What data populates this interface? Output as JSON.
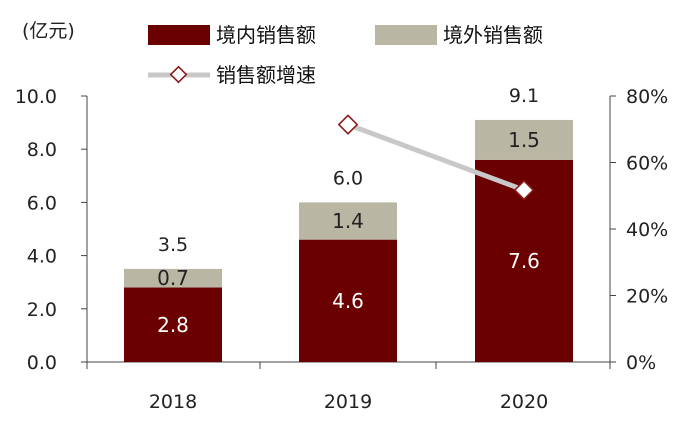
{
  "chart_data": {
    "type": "bar",
    "stacked": true,
    "unit_left": "(亿元)",
    "categories": [
      "2018",
      "2019",
      "2020"
    ],
    "series": [
      {
        "name": "境内销售额",
        "values": [
          2.8,
          4.6,
          7.6
        ],
        "color": "#6b0000",
        "label_color": "#ffffff"
      },
      {
        "name": "境外销售额",
        "values": [
          0.7,
          1.4,
          1.5
        ],
        "color": "#b9b7a4",
        "label_color": "#222222"
      }
    ],
    "totals": [
      3.5,
      6.0,
      9.1
    ],
    "line_series": {
      "name": "销售额增速",
      "axis": "right",
      "values": [
        null,
        71.4,
        51.7
      ],
      "line_color": "#c8c8c8",
      "marker_edge_color": "#8b1a1a"
    },
    "y_left": {
      "min": 0,
      "max": 10,
      "ticks": [
        "0.0",
        "2.0",
        "4.0",
        "6.0",
        "8.0",
        "10.0"
      ]
    },
    "y_right": {
      "min": 0,
      "max": 80,
      "ticks": [
        "0%",
        "20%",
        "40%",
        "60%",
        "80%"
      ]
    },
    "legend_position": "top",
    "grid": false
  }
}
